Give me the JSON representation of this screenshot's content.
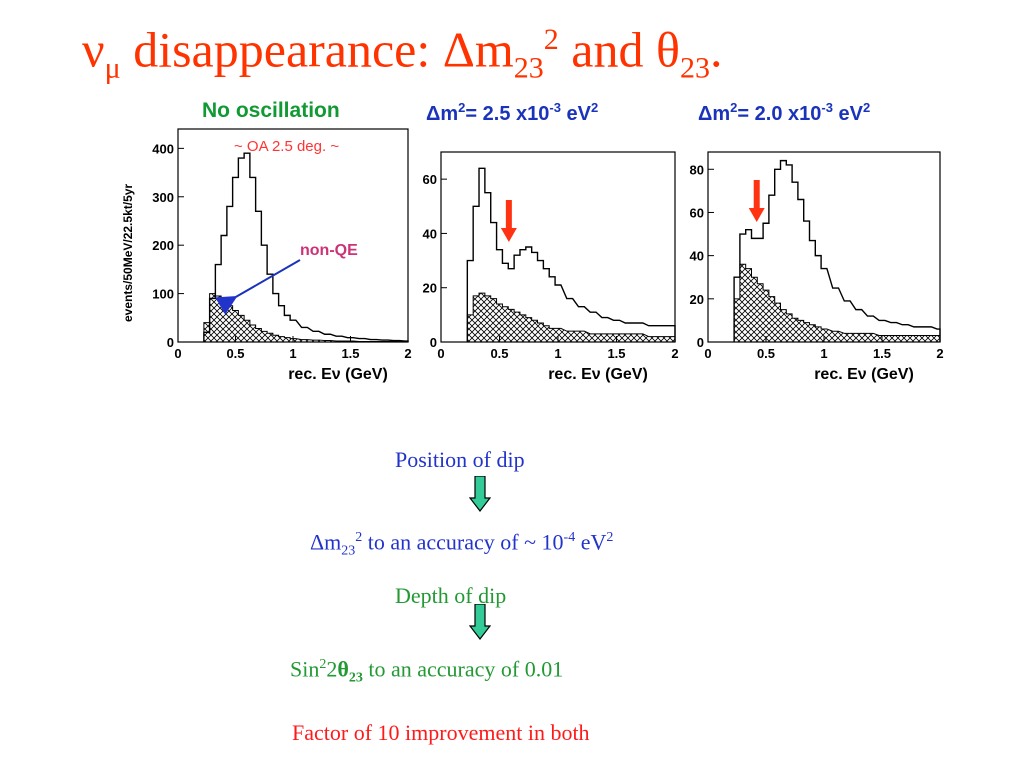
{
  "slide": {
    "title_nu": "ν",
    "title_mu": "μ",
    "title_text": " disappearance: Δm",
    "title_sub1": "23",
    "title_sup": "2",
    "title_and": " and θ",
    "title_sub2": "23",
    "title_end": "."
  },
  "notes": {
    "position_of_dip": "Position of dip",
    "dm_prefix": "Δm",
    "dm_sub": "23",
    "dm_sup": "2",
    "dm_text": " to an accuracy of ~ 10",
    "dm_exp": "-4",
    "dm_unit": " eV",
    "dm_unit_sup": "2",
    "depth_of_dip": "Depth of dip",
    "sin_prefix": "Sin",
    "sin_sup": "2",
    "sin_two": "2",
    "sin_theta": "θ",
    "sin_sub": "23",
    "sin_text": " to an accuracy of 0.01",
    "factor": "Factor of 10 improvement in both"
  },
  "colors": {
    "title": "#ff3300",
    "blue_text": "#2233cc",
    "green_text": "#229933",
    "red_text": "#ff1a1a",
    "panel_title_green": "#119933",
    "panel_title_blue": "#1a33bb",
    "annotation_red": "#ff3333",
    "nonqe_magenta": "#cc3377",
    "arrow_red": "#ff3311",
    "down_arrow_fill": "#33cc99"
  },
  "chart_data": [
    {
      "type": "line",
      "title": "No oscillation",
      "annotation": "~ OA 2.5 deg. ~",
      "label_nonqe": "non-QE",
      "ylabel": "events/50MeV/22.5kt/5yr",
      "xlabel": "rec. Eν (GeV)",
      "xlim": [
        0,
        2
      ],
      "ylim": [
        0,
        440
      ],
      "x_ticks": [
        "0",
        "0.5",
        "1",
        "1.5",
        "2"
      ],
      "y_ticks": [
        {
          "v": 0,
          "label": "0"
        },
        {
          "v": 100,
          "label": "100"
        },
        {
          "v": 200,
          "label": "200"
        },
        {
          "v": 300,
          "label": "300"
        },
        {
          "v": 400,
          "label": "400"
        }
      ],
      "series": [
        {
          "x": [
            0.25,
            0.3,
            0.35,
            0.4,
            0.45,
            0.5,
            0.55,
            0.6,
            0.65,
            0.7,
            0.75,
            0.8,
            0.85,
            0.9,
            0.95,
            1.0,
            1.1,
            1.2,
            1.3,
            1.4,
            1.5,
            1.6,
            1.7,
            1.8,
            1.9,
            2.0
          ],
          "values": [
            20,
            90,
            160,
            220,
            280,
            340,
            380,
            390,
            340,
            270,
            200,
            140,
            100,
            75,
            55,
            45,
            30,
            22,
            16,
            12,
            9,
            7,
            5,
            4,
            3,
            2
          ]
        },
        {
          "x": [
            0.25,
            0.3,
            0.35,
            0.4,
            0.45,
            0.5,
            0.55,
            0.6,
            0.65,
            0.7,
            0.75,
            0.8,
            0.85,
            0.9,
            0.95,
            1.0,
            1.1,
            1.2,
            1.3,
            1.4,
            1.5,
            1.6,
            1.7,
            1.8,
            1.9,
            2.0
          ],
          "values": [
            40,
            100,
            95,
            85,
            75,
            65,
            55,
            45,
            35,
            28,
            22,
            18,
            14,
            11,
            9,
            7,
            5,
            4,
            3,
            2,
            2,
            1,
            1,
            1,
            1,
            0
          ]
        }
      ]
    },
    {
      "type": "line",
      "title_prefix": "Δm",
      "title_sup": "2",
      "title_mid": "= 2.5 x10",
      "title_exp": "-3",
      "title_unit": " eV",
      "title_unit_sup": "2",
      "xlabel": "rec. Eν (GeV)",
      "xlim": [
        0,
        2
      ],
      "ylim": [
        0,
        70
      ],
      "x_ticks": [
        "0",
        "0.5",
        "1",
        "1.5",
        "2"
      ],
      "y_ticks": [
        {
          "v": 0,
          "label": "0"
        },
        {
          "v": 20,
          "label": "20"
        },
        {
          "v": 40,
          "label": "40"
        },
        {
          "v": 60,
          "label": "60"
        }
      ],
      "dip_x": 0.58,
      "series": [
        {
          "x": [
            0.25,
            0.3,
            0.35,
            0.4,
            0.45,
            0.5,
            0.55,
            0.6,
            0.65,
            0.7,
            0.75,
            0.8,
            0.85,
            0.9,
            0.95,
            1.0,
            1.1,
            1.2,
            1.3,
            1.4,
            1.5,
            1.6,
            1.7,
            1.8,
            1.9,
            2.0
          ],
          "values": [
            30,
            50,
            64,
            55,
            44,
            34,
            29,
            27,
            32,
            34,
            35,
            33,
            30,
            27,
            24,
            21,
            16,
            13,
            11,
            9,
            8,
            7,
            7,
            6,
            6,
            6
          ]
        },
        {
          "x": [
            0.25,
            0.3,
            0.35,
            0.4,
            0.45,
            0.5,
            0.55,
            0.6,
            0.65,
            0.7,
            0.75,
            0.8,
            0.85,
            0.9,
            0.95,
            1.0,
            1.1,
            1.2,
            1.3,
            1.4,
            1.5,
            1.6,
            1.7,
            1.8,
            1.9,
            2.0
          ],
          "values": [
            10,
            17,
            18,
            17,
            16,
            14,
            13,
            12,
            11,
            10,
            9,
            8,
            7,
            6,
            5,
            5,
            4,
            4,
            3,
            3,
            3,
            3,
            3,
            2,
            2,
            2
          ]
        }
      ]
    },
    {
      "type": "line",
      "title_prefix": "Δm",
      "title_sup": "2",
      "title_mid": "= 2.0 x10",
      "title_exp": "-3",
      "title_unit": " eV",
      "title_unit_sup": "2",
      "xlabel": "rec. Eν (GeV)",
      "xlim": [
        0,
        2
      ],
      "ylim": [
        0,
        88
      ],
      "x_ticks": [
        "0",
        "0.5",
        "1",
        "1.5",
        "2"
      ],
      "y_ticks": [
        {
          "v": 0,
          "label": "0"
        },
        {
          "v": 20,
          "label": "20"
        },
        {
          "v": 40,
          "label": "40"
        },
        {
          "v": 60,
          "label": "60"
        },
        {
          "v": 80,
          "label": "80"
        }
      ],
      "dip_x": 0.42,
      "series": [
        {
          "x": [
            0.25,
            0.3,
            0.35,
            0.4,
            0.45,
            0.5,
            0.55,
            0.6,
            0.65,
            0.7,
            0.75,
            0.8,
            0.85,
            0.9,
            0.95,
            1.0,
            1.1,
            1.2,
            1.3,
            1.4,
            1.5,
            1.6,
            1.7,
            1.8,
            1.9,
            2.0
          ],
          "values": [
            30,
            50,
            52,
            48,
            48,
            55,
            68,
            80,
            84,
            82,
            74,
            66,
            56,
            47,
            40,
            34,
            25,
            19,
            15,
            12,
            10,
            9,
            8,
            7,
            7,
            6
          ]
        },
        {
          "x": [
            0.25,
            0.3,
            0.35,
            0.4,
            0.45,
            0.5,
            0.55,
            0.6,
            0.65,
            0.7,
            0.75,
            0.8,
            0.85,
            0.9,
            0.95,
            1.0,
            1.1,
            1.2,
            1.3,
            1.4,
            1.5,
            1.6,
            1.7,
            1.8,
            1.9,
            2.0
          ],
          "values": [
            20,
            36,
            34,
            30,
            27,
            24,
            21,
            18,
            15,
            13,
            11,
            10,
            9,
            8,
            7,
            6,
            5,
            4,
            4,
            4,
            3,
            3,
            3,
            3,
            3,
            3
          ]
        }
      ]
    }
  ]
}
